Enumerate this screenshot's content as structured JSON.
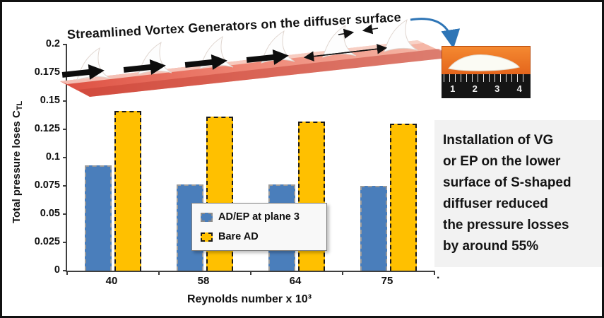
{
  "title": "Streamlined Vortex Generators on the diffuser surface",
  "chart_data": {
    "type": "bar",
    "categories": [
      "40",
      "58",
      "64",
      "75"
    ],
    "series": [
      {
        "name": "AD/EP at plane 3",
        "color": "#4A7EBB",
        "values": [
          0.093,
          0.076,
          0.076,
          0.075
        ]
      },
      {
        "name": "Bare AD",
        "color": "#FFC000",
        "values": [
          0.141,
          0.136,
          0.132,
          0.13
        ]
      }
    ],
    "xlabel": "Reynolds number x 10³",
    "ylabel": "Total pressure loses C_TL",
    "ylabel_main": "Total pressure loses C",
    "ylabel_sub": "TL",
    "ylim": [
      0,
      0.2
    ],
    "ytick_labels": [
      "0",
      "0.025",
      "0.05",
      "0.075",
      "0.1",
      "0.125",
      "0.15",
      "0.175",
      "0.2"
    ],
    "grid": false,
    "legend_position": "inside-bottom-center"
  },
  "annotation": {
    "full_text": "Installation of VG or EP on the lower surface of S-shaped diffuser reduced the pressure losses by around 55%",
    "lines": [
      "Installation of VG",
      "or EP on the lower",
      "surface of S-shaped",
      "diffuser reduced",
      "the pressure losses",
      "by around 55%"
    ]
  },
  "inset": {
    "ruler_numbers": [
      "1",
      "2",
      "3",
      "4"
    ]
  },
  "stray_mark": "."
}
